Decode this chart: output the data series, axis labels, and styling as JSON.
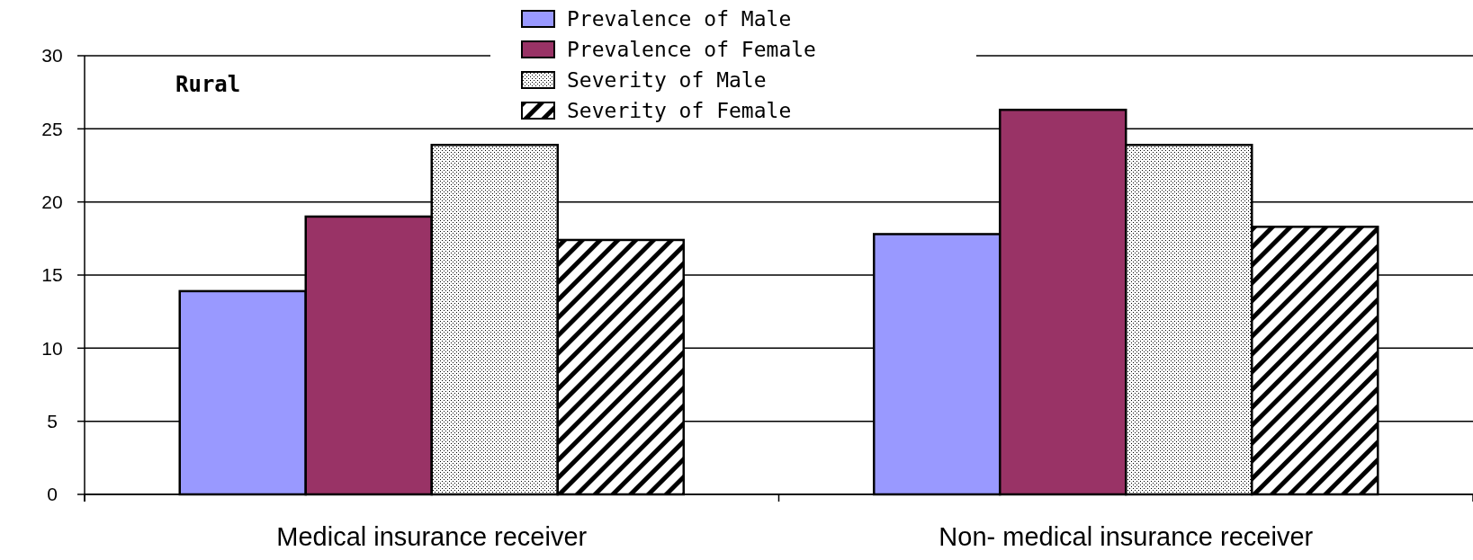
{
  "chart_data": {
    "type": "bar",
    "categories": [
      "Medical insurance receiver",
      "Non- medical insurance receiver"
    ],
    "series": [
      {
        "name": "Prevalence of Male",
        "color": "#9999ff",
        "values": [
          13.9,
          17.8
        ]
      },
      {
        "name": "Prevalence of Female",
        "color": "#993366",
        "values": [
          19,
          26.3
        ]
      },
      {
        "name": "Severity of Male",
        "color": "#000000",
        "values": [
          23.9,
          23.9
        ]
      },
      {
        "name": "Severity of Female",
        "color": "#000000",
        "values": [
          17.4,
          18.3
        ]
      }
    ],
    "ylim": [
      0,
      30
    ],
    "yticks": [
      0,
      5,
      10,
      15,
      20,
      25,
      30
    ],
    "grid": "y",
    "legend": "top",
    "annotations": [
      "Rural"
    ]
  }
}
